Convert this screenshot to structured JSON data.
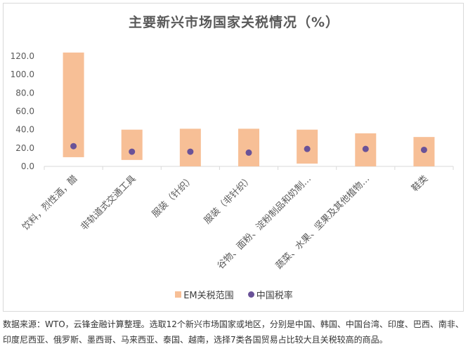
{
  "chart_data": {
    "type": "bar",
    "title": "主要新兴市场国家关税情况（%）",
    "categories": [
      "饮料，烈性酒，醋",
      "非轨道式交通工具",
      "服装（针织）",
      "服装（非针织）",
      "谷物、面粉、淀粉制品和奶制…",
      "蔬菜、水果、坚果及其他植物…",
      "鞋类"
    ],
    "series": [
      {
        "name": "EM关税范围",
        "kind": "range",
        "low": [
          10,
          7,
          0,
          0,
          3,
          0,
          0
        ],
        "high": [
          124,
          40,
          41,
          41,
          40,
          36,
          32
        ]
      },
      {
        "name": "中国税率",
        "kind": "dot",
        "values": [
          22,
          16,
          16,
          15,
          19,
          19,
          18
        ]
      }
    ],
    "yticks": [
      "0.0",
      "20.0",
      "40.0",
      "60.0",
      "80.0",
      "100.0",
      "120.0"
    ],
    "ylim": [
      0,
      130
    ],
    "grid": false,
    "legend_position": "bottom",
    "colors": {
      "range": "#f7bf96",
      "dot": "#6a5298",
      "axis": "#d9d9d9",
      "tick_text": "#595959"
    }
  },
  "source_note": "数据来源：WTO，云锋金融计算整理。选取12个新兴市场国家或地区，分别是中国、韩国、中国台湾、印度、巴西、南非、印度尼西亚、俄罗斯、墨西哥、马来西亚、泰国、越南，选择7类各国贸易占比较大且关税较高的商品。"
}
